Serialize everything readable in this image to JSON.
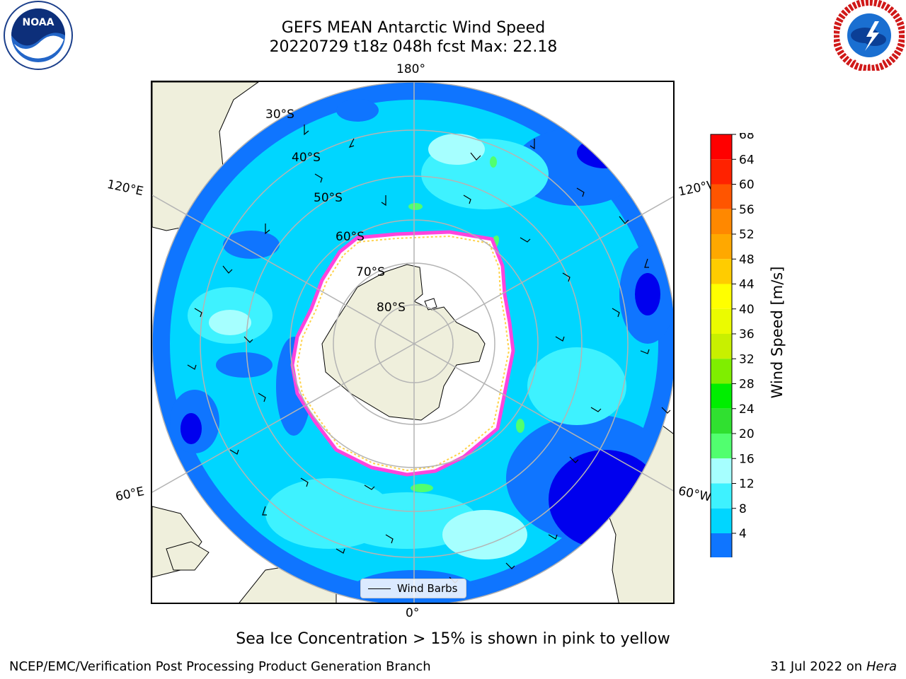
{
  "title_line1": "GEFS MEAN Antarctic Wind Speed",
  "title_line2": "20220729 t18z 048h fcst   Max: 22.18",
  "logos": {
    "left": {
      "name": "noaa-logo",
      "text": "NOAA",
      "ring_text": "NATIONAL OCEANIC AND ATMOSPHERIC ADMINISTRATION · U.S. DEPARTMENT OF COMMERCE"
    },
    "right": {
      "name": "nws-logo",
      "ring_text": "NATIONAL WEATHER SERVICE"
    }
  },
  "map": {
    "projection": "south-polar-stereographic",
    "lon_labels": {
      "top": "180°",
      "bottom": "0°",
      "upper_left": "120°E",
      "upper_right": "120°W",
      "lower_left": "60°E",
      "lower_right": "60°W"
    },
    "lat_labels": [
      "30°S",
      "40°S",
      "50°S",
      "60°S",
      "70°S",
      "80°S"
    ],
    "colors": {
      "land": "#efefdc",
      "ice_interior": "#ffffff",
      "sea_ice_edge": "#ff44dd",
      "sea_ice_inner": "#ffd24a",
      "grid": "#b4b4b4"
    }
  },
  "colorbar": {
    "label": "Wind Speed [m/s]",
    "ticks": [
      "4",
      "8",
      "12",
      "16",
      "20",
      "24",
      "28",
      "32",
      "36",
      "40",
      "44",
      "48",
      "52",
      "56",
      "60",
      "64",
      "68"
    ],
    "colors": [
      "#0000ee",
      "#0f75ff",
      "#00d6ff",
      "#3ef2ff",
      "#a6ffff",
      "#51ff6f",
      "#30e030",
      "#00ee00",
      "#7fee00",
      "#c8f000",
      "#ebfb00",
      "#ffff00",
      "#ffcc00",
      "#ffa800",
      "#ff8800",
      "#ff5500",
      "#ff2200",
      "#ff0000"
    ]
  },
  "legend": {
    "label": "Wind Barbs"
  },
  "subtitle": "Sea Ice Concentration > 15% is shown in pink to yellow",
  "footer_left": "NCEP/EMC/Verification Post Processing Product Generation Branch",
  "footer_right_date": "31 Jul 2022 on ",
  "footer_right_host": "Hera"
}
